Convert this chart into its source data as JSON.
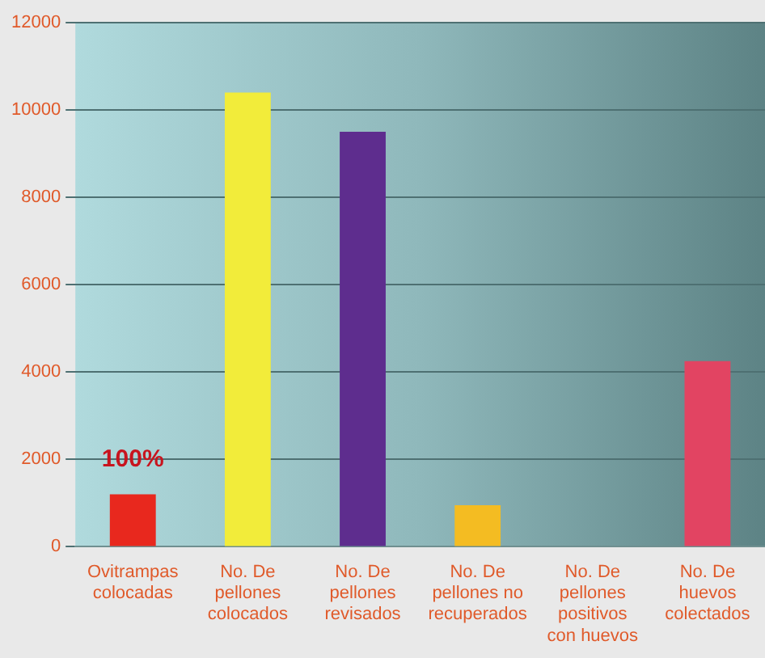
{
  "chart_data": {
    "type": "bar",
    "categories": [
      "Ovitrampas colocadas",
      "No. De pellones colocados",
      "No. De pellones revisados",
      "No. De pellones no recuperados",
      "No. De pellones positivos con huevos",
      "No. De huevos colectados"
    ],
    "values": [
      1200,
      10400,
      9500,
      950,
      null,
      4250
    ],
    "colors": [
      "#e8281e",
      "#f2ec3a",
      "#5e2d8e",
      "#f4bc22",
      "#5e8c8e",
      "#e24462"
    ],
    "ylim": [
      0,
      12000
    ],
    "yticks": [
      0,
      2000,
      4000,
      6000,
      8000,
      10000,
      12000
    ],
    "grid": "y",
    "legend": false,
    "annotations": [
      {
        "text": "100%",
        "x": "Ovitrampas colocadas",
        "y": 1200
      }
    ]
  }
}
